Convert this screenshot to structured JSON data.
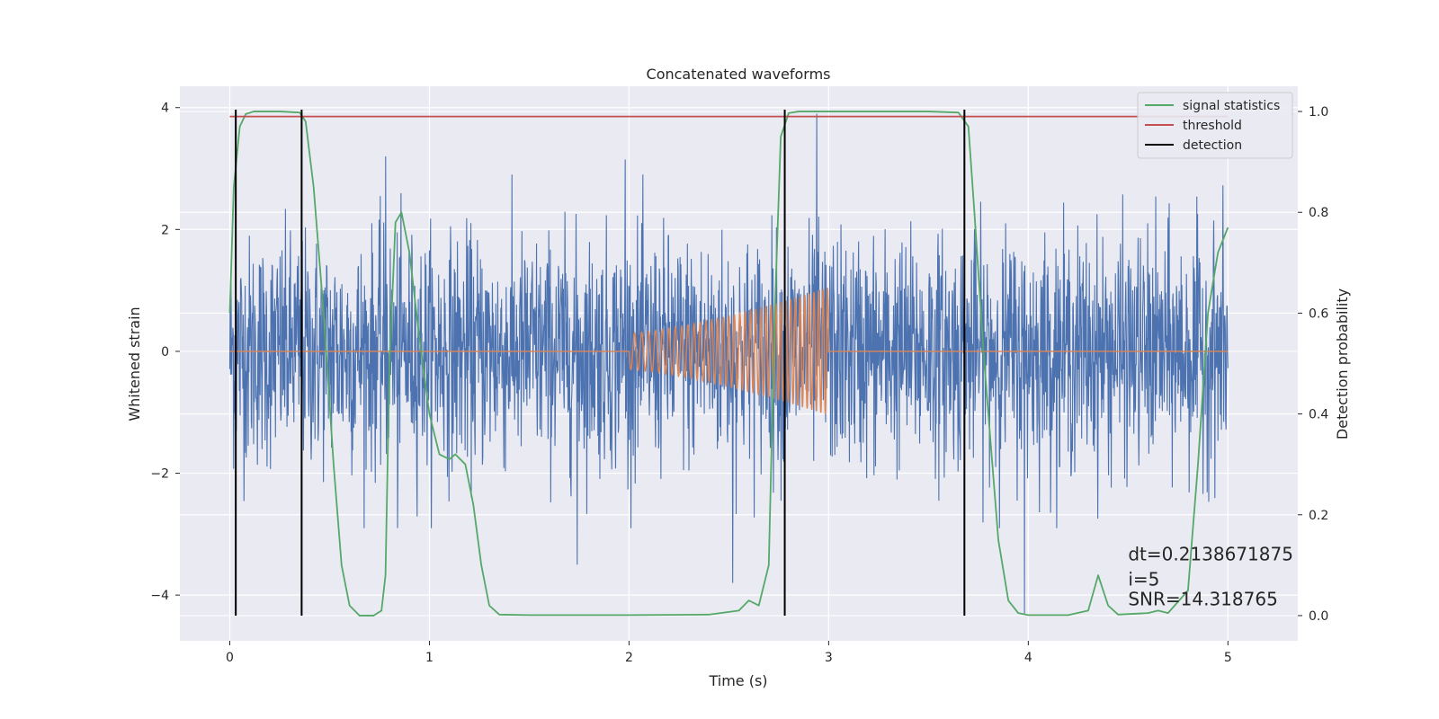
{
  "chart_data": {
    "type": "line",
    "title": "Concatenated waveforms",
    "xlabel": "Time (s)",
    "ylabel": "Whitened strain",
    "y2label": "Detection probability",
    "xlim": [
      -0.25,
      5.35
    ],
    "ylim": [
      -4.75,
      4.35
    ],
    "y2lim": [
      -0.05,
      1.05
    ],
    "x_ticks": [
      0,
      1,
      2,
      3,
      4,
      5
    ],
    "x_tick_labels": [
      "0",
      "1",
      "2",
      "3",
      "4",
      "5"
    ],
    "y_ticks": [
      -4,
      -2,
      0,
      2,
      4
    ],
    "y_tick_labels": [
      "−4",
      "−2",
      "0",
      "2",
      "4"
    ],
    "y2_ticks": [
      0.0,
      0.2,
      0.4,
      0.6,
      0.8,
      1.0
    ],
    "y2_tick_labels": [
      "0.0",
      "0.2",
      "0.4",
      "0.6",
      "0.8",
      "1.0"
    ],
    "grid": true,
    "legend_position": "top-right",
    "legend": [
      {
        "label": "signal statistics",
        "color": "#55a868"
      },
      {
        "label": "threshold",
        "color": "#c44e52"
      },
      {
        "label": "detection",
        "color": "#000000"
      }
    ],
    "series": [
      {
        "kind": "noise",
        "color": "#4c72b0",
        "x_range": [
          0,
          5
        ],
        "amplitude_typical": 1.3,
        "peaks": [
          [
            0.78,
            3.2
          ],
          [
            1.98,
            3.15
          ],
          [
            2.94,
            3.9
          ],
          [
            0.84,
            -2.9
          ],
          [
            1.74,
            -3.5
          ],
          [
            2.52,
            -3.8
          ],
          [
            3.98,
            -4.3
          ]
        ]
      },
      {
        "kind": "chirp",
        "color": "#dd8452",
        "x": [
          0,
          2.0,
          2.0,
          2.5,
          3.0,
          3.0,
          5
        ],
        "amplitude": [
          0,
          0,
          0.3,
          0.6,
          1.05,
          0,
          0
        ],
        "cycles": 36
      },
      {
        "name": "signal statistics",
        "axis": "right",
        "color": "#55a868",
        "x": [
          0.0,
          0.02,
          0.05,
          0.08,
          0.12,
          0.25,
          0.35,
          0.38,
          0.42,
          0.47,
          0.52,
          0.56,
          0.6,
          0.65,
          0.72,
          0.76,
          0.78,
          0.8,
          0.83,
          0.86,
          0.9,
          0.95,
          1.0,
          1.05,
          1.1,
          1.13,
          1.18,
          1.22,
          1.26,
          1.3,
          1.35,
          1.5,
          2.0,
          2.4,
          2.55,
          2.6,
          2.65,
          2.7,
          2.73,
          2.76,
          2.8,
          2.85,
          3.0,
          3.5,
          3.65,
          3.7,
          3.73,
          3.78,
          3.85,
          3.9,
          3.95,
          4.0,
          4.2,
          4.3,
          4.35,
          4.4,
          4.45,
          4.6,
          4.65,
          4.7,
          4.8,
          4.85,
          4.9,
          4.95,
          5.0
        ],
        "y": [
          0.6,
          0.85,
          0.97,
          0.995,
          1.0,
          1.0,
          0.998,
          0.98,
          0.85,
          0.6,
          0.3,
          0.1,
          0.02,
          0.0,
          0.0,
          0.01,
          0.08,
          0.5,
          0.78,
          0.8,
          0.72,
          0.55,
          0.4,
          0.32,
          0.31,
          0.32,
          0.3,
          0.22,
          0.1,
          0.02,
          0.002,
          0.001,
          0.001,
          0.002,
          0.01,
          0.03,
          0.02,
          0.1,
          0.6,
          0.95,
          0.997,
          1.0,
          1.0,
          1.0,
          0.998,
          0.97,
          0.8,
          0.5,
          0.15,
          0.03,
          0.005,
          0.001,
          0.001,
          0.01,
          0.08,
          0.02,
          0.002,
          0.005,
          0.01,
          0.005,
          0.05,
          0.3,
          0.6,
          0.72,
          0.77
        ]
      },
      {
        "name": "threshold",
        "axis": "right",
        "color": "#c44e52",
        "x": [
          0,
          5
        ],
        "y": [
          0.99,
          0.99
        ]
      },
      {
        "name": "detection",
        "kind": "vlines",
        "axis": "right",
        "color": "#000000",
        "x": [
          0.03,
          0.36,
          2.78,
          3.68
        ],
        "y_range": [
          0.0,
          1.0
        ]
      }
    ],
    "annotations": [
      {
        "text": "dt=0.2138671875",
        "x": 4.5,
        "y": 0.11
      },
      {
        "text": " i=5",
        "x": 4.5,
        "y": 0.06
      },
      {
        "text": "SNR=14.318765",
        "x": 4.5,
        "y": 0.02
      }
    ]
  }
}
